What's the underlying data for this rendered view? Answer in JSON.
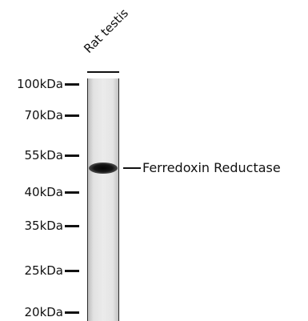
{
  "lane": {
    "label": "Rat testis"
  },
  "markers": [
    {
      "label": "100kDa"
    },
    {
      "label": "70kDa"
    },
    {
      "label": "55kDa"
    },
    {
      "label": "40kDa"
    },
    {
      "label": "35kDa"
    },
    {
      "label": "25kDa"
    },
    {
      "label": "20kDa"
    }
  ],
  "band": {
    "label": "Ferredoxin Reductase"
  }
}
